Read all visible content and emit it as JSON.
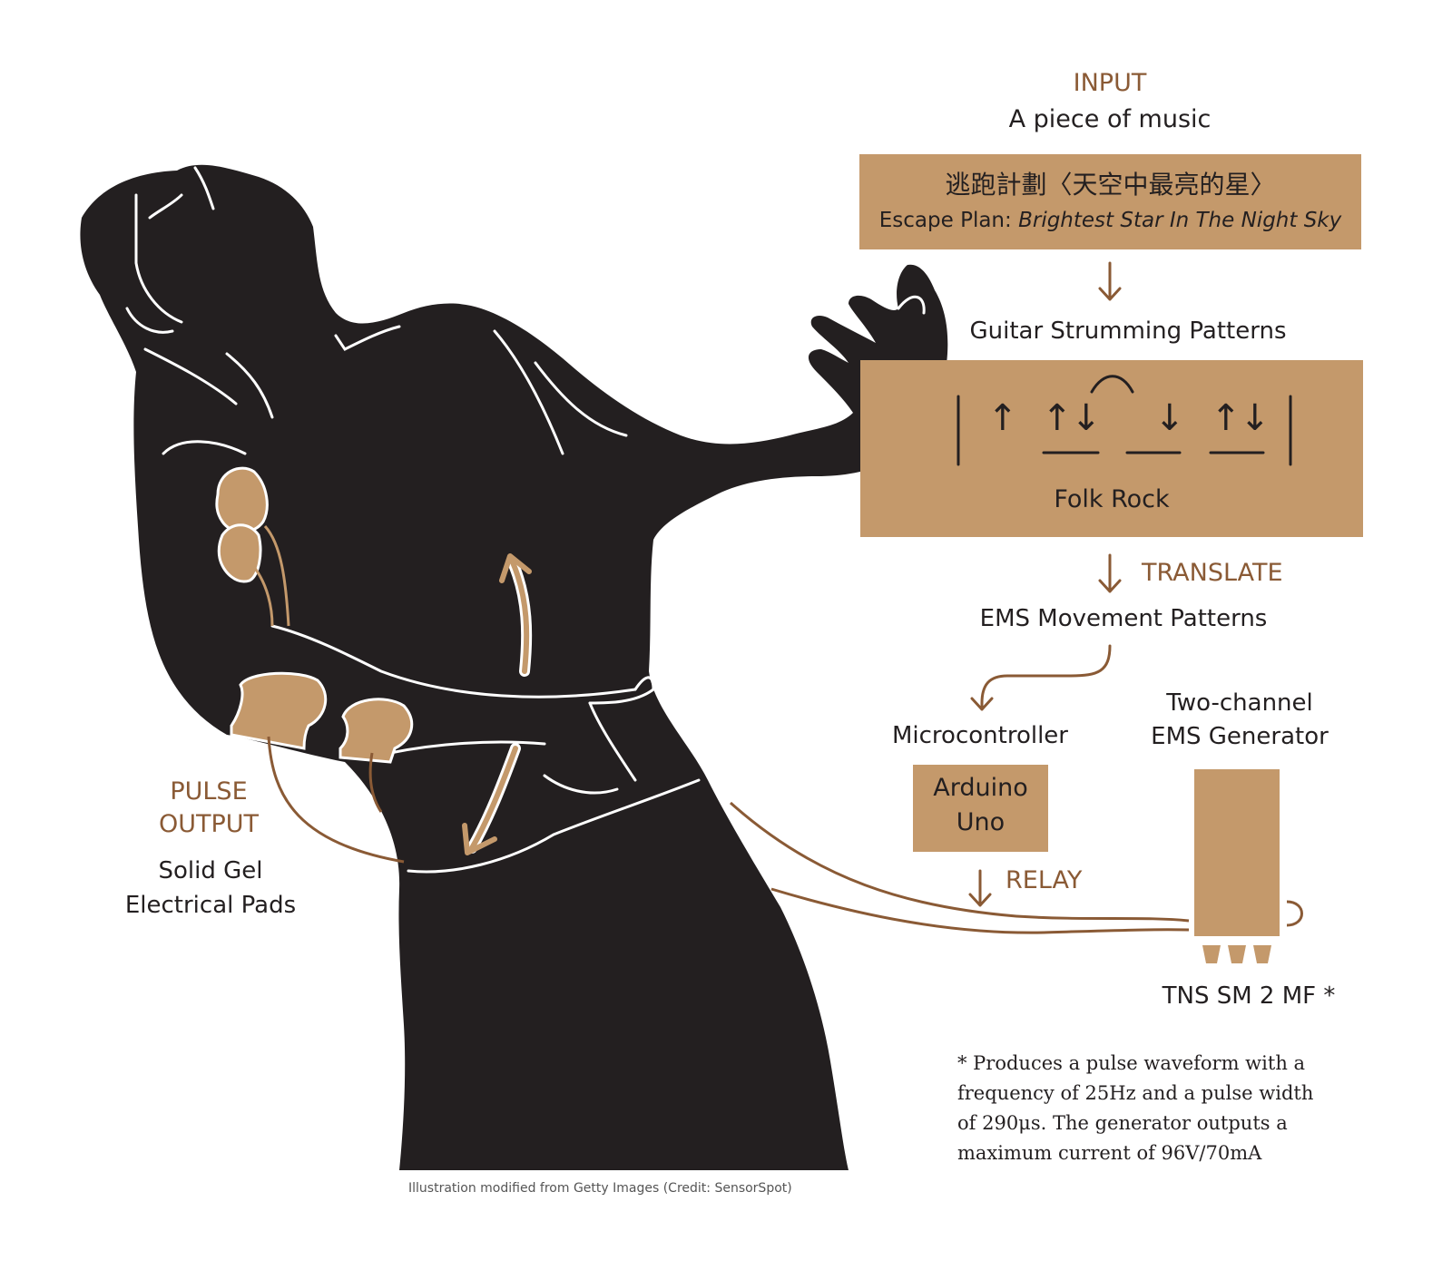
{
  "colors": {
    "ink": "#231f20",
    "accent_brown": "#8a5a35",
    "box_tan": "#c4996b"
  },
  "input": {
    "heading": "INPUT",
    "subtitle": "A piece of music",
    "song_chinese": "逃跑計劃〈天空中最亮的星〉",
    "song_artist": "Escape Plan:",
    "song_title_en": "Brightest Star In The Night Sky"
  },
  "strumming": {
    "heading": "Guitar Strumming Patterns",
    "style": "Folk Rock",
    "arrows": [
      "↑",
      "↑",
      "↓",
      "↓",
      "↑",
      "↓"
    ]
  },
  "translate": {
    "label": "TRANSLATE",
    "result": "EMS Movement Patterns"
  },
  "microcontroller": {
    "heading": "Microcontroller",
    "box_line1": "Arduino",
    "box_line2": "Uno"
  },
  "relay": {
    "label": "RELAY"
  },
  "generator": {
    "heading_line1": "Two-channel",
    "heading_line2": "EMS Generator",
    "model": "TNS SM 2 MF *"
  },
  "pulse": {
    "heading_line1": "PULSE",
    "heading_line2": "OUTPUT",
    "desc_line1": "Solid Gel",
    "desc_line2": "Electrical Pads"
  },
  "footnote": {
    "line1": "* Produces a pulse waveform with a",
    "line2": "frequency of 25Hz and a pulse width",
    "line3": "of 290μs. The generator outputs a",
    "line4": "maximum current of 96V/70mA"
  },
  "credit": "Illustration modified from Getty Images (Credit: SensorSpot)"
}
